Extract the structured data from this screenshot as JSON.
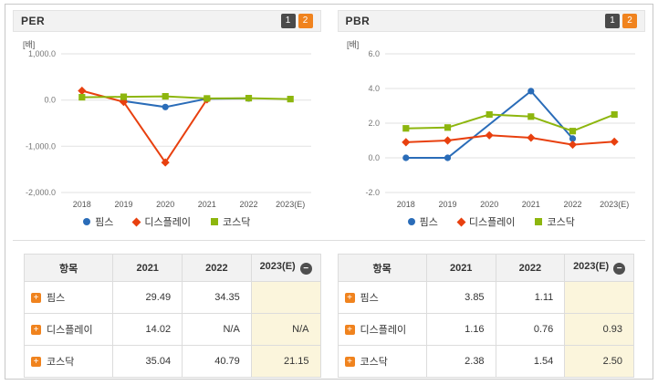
{
  "panels": [
    {
      "title": "PER",
      "pager": [
        "1",
        "2"
      ]
    },
    {
      "title": "PBR",
      "pager": [
        "1",
        "2"
      ]
    }
  ],
  "icons": {
    "expand": "+",
    "collapse": "−"
  },
  "chart_data": [
    {
      "type": "line",
      "title": "PER",
      "ylabel": "[배]",
      "categories": [
        "2018",
        "2019",
        "2020",
        "2021",
        "2022",
        "2023(E)"
      ],
      "ylim": [
        -2000,
        1000
      ],
      "grid": true,
      "legend_position": "bottom",
      "y_ticks": [
        {
          "value": 1000,
          "label": "1,000.0"
        },
        {
          "value": 0,
          "label": "0.0"
        },
        {
          "value": -1000,
          "label": "-1,000.0"
        },
        {
          "value": -2000,
          "label": "-2,000.0"
        }
      ],
      "series": [
        {
          "name": "핌스",
          "color": "#2a6cb8",
          "marker": "circle",
          "values": [
            null,
            -20,
            -150,
            29.49,
            34.35,
            null
          ]
        },
        {
          "name": "디스플레이",
          "color": "#e8400f",
          "marker": "diamond",
          "values": [
            200,
            -40,
            -1350,
            14.02,
            null,
            null
          ]
        },
        {
          "name": "코스닥",
          "color": "#8db60e",
          "marker": "square",
          "values": [
            60,
            70,
            80,
            35.04,
            40.79,
            21.15
          ]
        }
      ]
    },
    {
      "type": "line",
      "title": "PBR",
      "ylabel": "[배]",
      "categories": [
        "2018",
        "2019",
        "2020",
        "2021",
        "2022",
        "2023(E)"
      ],
      "ylim": [
        -2,
        6
      ],
      "grid": true,
      "legend_position": "bottom",
      "y_ticks": [
        {
          "value": 6,
          "label": "6.0"
        },
        {
          "value": 4,
          "label": "4.0"
        },
        {
          "value": 2,
          "label": "2.0"
        },
        {
          "value": 0,
          "label": "0.0"
        },
        {
          "value": -2,
          "label": "-2.0"
        }
      ],
      "series": [
        {
          "name": "핌스",
          "color": "#2a6cb8",
          "marker": "circle",
          "values": [
            0.0,
            0.0,
            null,
            3.85,
            1.11,
            null
          ]
        },
        {
          "name": "디스플레이",
          "color": "#e8400f",
          "marker": "diamond",
          "values": [
            0.9,
            1.0,
            1.3,
            1.16,
            0.76,
            0.93
          ]
        },
        {
          "name": "코스닥",
          "color": "#8db60e",
          "marker": "square",
          "values": [
            1.7,
            1.75,
            2.5,
            2.38,
            1.54,
            2.5
          ]
        }
      ]
    }
  ],
  "tables": [
    {
      "columns": [
        "항목",
        "2021",
        "2022",
        "2023(E)"
      ],
      "rows": [
        {
          "label": "핌스",
          "values": [
            "29.49",
            "34.35",
            ""
          ]
        },
        {
          "label": "디스플레이",
          "values": [
            "14.02",
            "N/A",
            "N/A"
          ]
        },
        {
          "label": "코스닥",
          "values": [
            "35.04",
            "40.79",
            "21.15"
          ]
        }
      ]
    },
    {
      "columns": [
        "항목",
        "2021",
        "2022",
        "2023(E)"
      ],
      "rows": [
        {
          "label": "핌스",
          "values": [
            "3.85",
            "1.11",
            ""
          ]
        },
        {
          "label": "디스플레이",
          "values": [
            "1.16",
            "0.76",
            "0.93"
          ]
        },
        {
          "label": "코스닥",
          "values": [
            "2.38",
            "1.54",
            "2.50"
          ]
        }
      ]
    }
  ]
}
